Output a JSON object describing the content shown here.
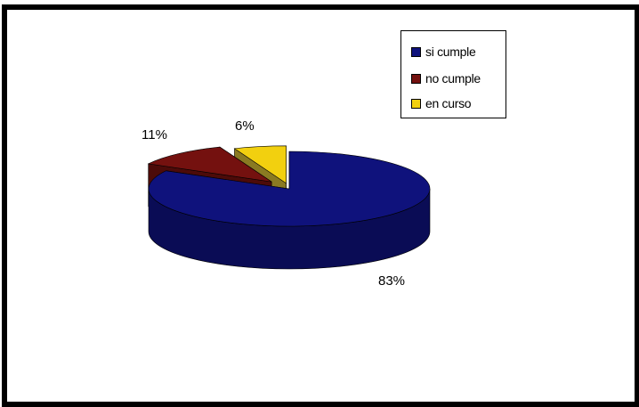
{
  "chart_data": {
    "type": "pie",
    "style": "3d-exploded",
    "categories": [
      "si cumple",
      "no cumple",
      "en curso"
    ],
    "values": [
      83,
      11,
      6
    ],
    "unit": "%",
    "data_labels": [
      "83%",
      "11%",
      "6%"
    ],
    "colors": [
      "#0f127c",
      "#74110f",
      "#f2d00f"
    ],
    "side_colors": [
      "#0a0c55",
      "#4c0b09",
      "#8a7a22"
    ],
    "legend_position": "top-right",
    "title": "",
    "grid": false
  },
  "legend": {
    "items": [
      {
        "label": "si cumple",
        "color": "#0f127c"
      },
      {
        "label": "no cumple",
        "color": "#74110f"
      },
      {
        "label": "en curso",
        "color": "#f2d00f"
      }
    ]
  }
}
